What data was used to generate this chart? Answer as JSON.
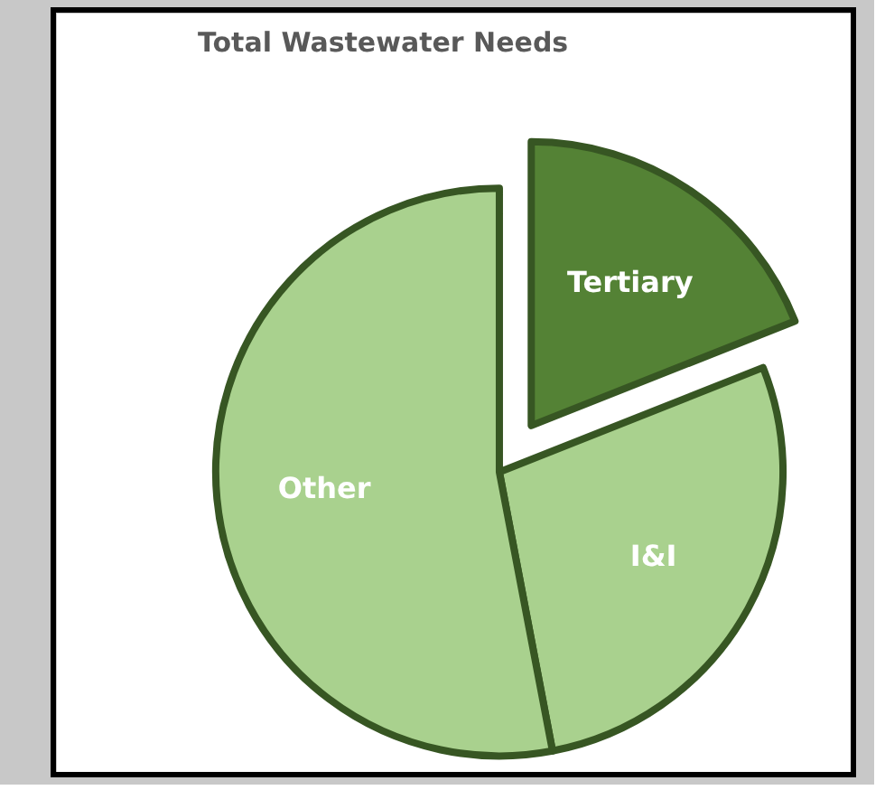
{
  "chart_data": {
    "type": "pie",
    "title": "Total Wastewater Needs",
    "categories": [
      "Tertiary",
      "I&I",
      "Other"
    ],
    "values": [
      19,
      28,
      53
    ],
    "colors": [
      "#548235",
      "#a9d18e",
      "#a9d18e"
    ]
  }
}
